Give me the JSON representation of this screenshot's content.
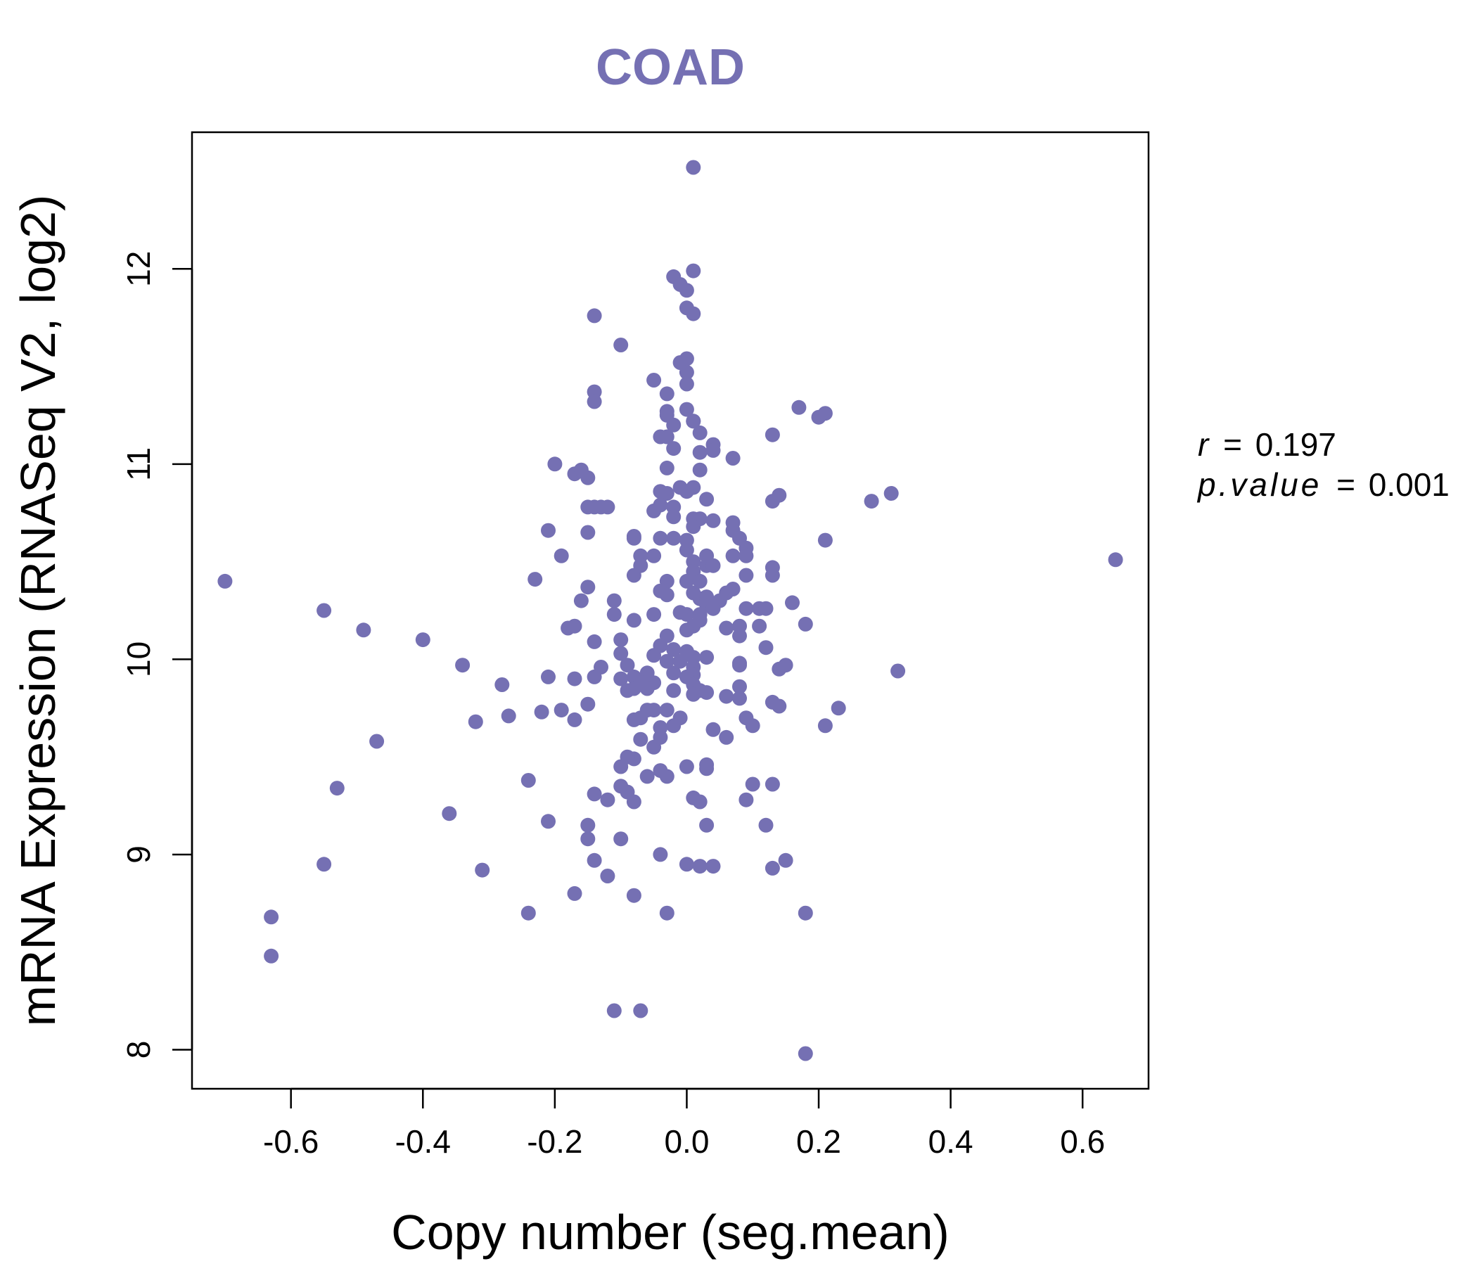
{
  "chart_data": {
    "type": "scatter",
    "title": "COAD",
    "xlabel": "Copy number (seg.mean)",
    "ylabel": "mRNA Expression (RNASeq V2, log2)",
    "xlim": [
      -0.75,
      0.7
    ],
    "ylim": [
      7.8,
      12.7
    ],
    "x_ticks": [
      -0.6,
      -0.4,
      -0.2,
      0.0,
      0.2,
      0.4,
      0.6
    ],
    "x_tick_labels": [
      "-0.6",
      "-0.4",
      "-0.2",
      "0.0",
      "0.2",
      "0.4",
      "0.6"
    ],
    "y_ticks": [
      8,
      9,
      10,
      11,
      12
    ],
    "y_tick_labels": [
      "8",
      "9",
      "10",
      "11",
      "12"
    ],
    "grid": false,
    "colors": {
      "points": "#7570b3",
      "title": "#7570b3",
      "axis": "#000000"
    },
    "annotations": {
      "r_label": "r",
      "r_value": "0.197",
      "p_label": "p.value",
      "p_value": "0.001",
      "equals": "="
    },
    "points": [
      [
        -0.7,
        10.4
      ],
      [
        -0.55,
        10.25
      ],
      [
        -0.49,
        10.15
      ],
      [
        -0.4,
        10.1
      ],
      [
        -0.34,
        9.97
      ],
      [
        -0.28,
        9.87
      ],
      [
        -0.32,
        9.68
      ],
      [
        -0.27,
        9.71
      ],
      [
        -0.47,
        9.58
      ],
      [
        -0.53,
        9.34
      ],
      [
        -0.36,
        9.21
      ],
      [
        -0.55,
        8.95
      ],
      [
        -0.31,
        8.92
      ],
      [
        -0.63,
        8.68
      ],
      [
        -0.63,
        8.48
      ],
      [
        -0.24,
        9.38
      ],
      [
        -0.24,
        8.7
      ],
      [
        -0.21,
        9.17
      ],
      [
        -0.23,
        10.41
      ],
      [
        -0.2,
        11.0
      ],
      [
        -0.21,
        10.66
      ],
      [
        -0.19,
        10.53
      ],
      [
        -0.22,
        9.73
      ],
      [
        -0.21,
        9.91
      ],
      [
        -0.19,
        9.74
      ],
      [
        -0.17,
        9.9
      ],
      [
        -0.17,
        9.69
      ],
      [
        -0.18,
        10.16
      ],
      [
        -0.17,
        10.17
      ],
      [
        -0.16,
        10.3
      ],
      [
        -0.15,
        10.37
      ],
      [
        -0.15,
        10.65
      ],
      [
        -0.15,
        10.93
      ],
      [
        -0.17,
        10.95
      ],
      [
        -0.16,
        10.97
      ],
      [
        -0.14,
        11.37
      ],
      [
        -0.14,
        11.32
      ],
      [
        -0.14,
        11.76
      ],
      [
        -0.15,
        10.78
      ],
      [
        -0.14,
        10.78
      ],
      [
        -0.13,
        10.78
      ],
      [
        -0.12,
        10.78
      ],
      [
        -0.14,
        10.09
      ],
      [
        -0.13,
        9.96
      ],
      [
        -0.14,
        9.91
      ],
      [
        -0.15,
        9.77
      ],
      [
        -0.14,
        9.31
      ],
      [
        -0.12,
        9.28
      ],
      [
        -0.15,
        9.15
      ],
      [
        -0.15,
        9.08
      ],
      [
        -0.14,
        8.97
      ],
      [
        -0.12,
        8.89
      ],
      [
        -0.17,
        8.8
      ],
      [
        -0.11,
        8.2
      ],
      [
        -0.07,
        8.2
      ],
      [
        -0.1,
        11.61
      ],
      [
        -0.11,
        10.3
      ],
      [
        -0.11,
        10.23
      ],
      [
        -0.1,
        10.1
      ],
      [
        -0.1,
        10.03
      ],
      [
        -0.09,
        9.97
      ],
      [
        -0.1,
        9.9
      ],
      [
        -0.08,
        9.91
      ],
      [
        -0.09,
        9.84
      ],
      [
        -0.08,
        9.85
      ],
      [
        -0.07,
        9.7
      ],
      [
        -0.08,
        9.69
      ],
      [
        -0.07,
        9.59
      ],
      [
        -0.08,
        9.49
      ],
      [
        -0.09,
        9.5
      ],
      [
        -0.1,
        9.45
      ],
      [
        -0.09,
        9.32
      ],
      [
        -0.1,
        9.35
      ],
      [
        -0.08,
        9.27
      ],
      [
        -0.1,
        9.08
      ],
      [
        -0.08,
        8.79
      ],
      [
        -0.08,
        10.63
      ],
      [
        -0.08,
        10.62
      ],
      [
        -0.07,
        10.53
      ],
      [
        -0.07,
        10.48
      ],
      [
        -0.08,
        10.43
      ],
      [
        -0.08,
        10.2
      ],
      [
        -0.06,
        9.93
      ],
      [
        -0.06,
        9.9
      ],
      [
        -0.05,
        9.88
      ],
      [
        -0.07,
        9.88
      ],
      [
        -0.06,
        9.85
      ],
      [
        -0.05,
        9.74
      ],
      [
        -0.06,
        9.74
      ],
      [
        -0.04,
        9.65
      ],
      [
        -0.05,
        9.55
      ],
      [
        -0.04,
        9.6
      ],
      [
        -0.06,
        9.4
      ],
      [
        -0.04,
        9.43
      ],
      [
        -0.03,
        9.4
      ],
      [
        -0.04,
        9.0
      ],
      [
        -0.03,
        8.7
      ],
      [
        -0.05,
        11.43
      ],
      [
        -0.04,
        11.14
      ],
      [
        -0.03,
        11.36
      ],
      [
        -0.03,
        11.27
      ],
      [
        -0.03,
        11.25
      ],
      [
        -0.02,
        11.2
      ],
      [
        -0.02,
        11.08
      ],
      [
        -0.03,
        11.14
      ],
      [
        -0.03,
        10.98
      ],
      [
        -0.04,
        10.86
      ],
      [
        -0.03,
        10.85
      ],
      [
        -0.02,
        10.78
      ],
      [
        -0.05,
        10.76
      ],
      [
        -0.04,
        10.79
      ],
      [
        -0.02,
        10.73
      ],
      [
        -0.02,
        10.62
      ],
      [
        -0.04,
        10.62
      ],
      [
        -0.05,
        10.53
      ],
      [
        -0.03,
        10.4
      ],
      [
        -0.04,
        10.35
      ],
      [
        -0.03,
        10.33
      ],
      [
        -0.05,
        10.23
      ],
      [
        -0.03,
        10.12
      ],
      [
        -0.04,
        10.07
      ],
      [
        -0.02,
        10.05
      ],
      [
        -0.05,
        10.02
      ],
      [
        -0.03,
        9.99
      ],
      [
        -0.02,
        9.93
      ],
      [
        -0.02,
        9.84
      ],
      [
        -0.03,
        9.74
      ],
      [
        -0.01,
        9.7
      ],
      [
        -0.02,
        9.66
      ],
      [
        -0.02,
        11.96
      ],
      [
        -0.01,
        11.92
      ],
      [
        0.01,
        11.99
      ],
      [
        0.0,
        11.89
      ],
      [
        0.0,
        11.8
      ],
      [
        0.01,
        11.77
      ],
      [
        -0.01,
        11.52
      ],
      [
        0.0,
        11.54
      ],
      [
        0.0,
        11.47
      ],
      [
        0.0,
        11.41
      ],
      [
        0.0,
        11.28
      ],
      [
        0.01,
        11.22
      ],
      [
        0.01,
        11.22
      ],
      [
        0.02,
        11.16
      ],
      [
        0.02,
        11.06
      ],
      [
        0.04,
        11.1
      ],
      [
        0.04,
        11.07
      ],
      [
        0.07,
        11.03
      ],
      [
        0.02,
        10.97
      ],
      [
        0.01,
        10.88
      ],
      [
        0.0,
        10.86
      ],
      [
        -0.01,
        10.88
      ],
      [
        0.03,
        10.82
      ],
      [
        0.01,
        10.72
      ],
      [
        0.02,
        10.72
      ],
      [
        0.04,
        10.71
      ],
      [
        0.07,
        10.7
      ],
      [
        0.07,
        10.66
      ],
      [
        0.08,
        10.62
      ],
      [
        0.09,
        10.57
      ],
      [
        0.09,
        10.53
      ],
      [
        0.07,
        10.53
      ],
      [
        0.03,
        10.53
      ],
      [
        0.03,
        10.48
      ],
      [
        0.04,
        10.48
      ],
      [
        0.01,
        10.5
      ],
      [
        0.0,
        10.56
      ],
      [
        0.0,
        10.61
      ],
      [
        0.01,
        10.68
      ],
      [
        0.01,
        10.45
      ],
      [
        0.0,
        10.4
      ],
      [
        0.02,
        10.4
      ],
      [
        0.01,
        10.34
      ],
      [
        0.02,
        10.31
      ],
      [
        0.03,
        10.28
      ],
      [
        0.03,
        10.32
      ],
      [
        0.05,
        10.3
      ],
      [
        0.04,
        10.26
      ],
      [
        0.06,
        10.34
      ],
      [
        0.07,
        10.36
      ],
      [
        0.09,
        10.43
      ],
      [
        0.02,
        10.23
      ],
      [
        0.0,
        10.23
      ],
      [
        -0.01,
        10.24
      ],
      [
        0.02,
        10.2
      ],
      [
        0.01,
        10.17
      ],
      [
        0.0,
        10.15
      ],
      [
        0.06,
        10.16
      ],
      [
        0.08,
        10.17
      ],
      [
        0.08,
        10.12
      ],
      [
        0.09,
        10.26
      ],
      [
        0.11,
        10.26
      ],
      [
        0.12,
        10.26
      ],
      [
        0.11,
        10.17
      ],
      [
        0.12,
        10.06
      ],
      [
        0.13,
        10.43
      ],
      [
        0.13,
        10.47
      ],
      [
        0.16,
        10.29
      ],
      [
        0.18,
        10.18
      ],
      [
        0.0,
        10.04
      ],
      [
        0.01,
        10.01
      ],
      [
        0.03,
        10.01
      ],
      [
        -0.01,
        9.99
      ],
      [
        0.01,
        9.96
      ],
      [
        0.01,
        9.92
      ],
      [
        0.0,
        9.91
      ],
      [
        0.01,
        9.87
      ],
      [
        0.02,
        9.84
      ],
      [
        0.03,
        9.83
      ],
      [
        0.01,
        9.82
      ],
      [
        0.06,
        9.81
      ],
      [
        0.08,
        9.86
      ],
      [
        0.08,
        9.8
      ],
      [
        0.08,
        9.98
      ],
      [
        0.08,
        9.97
      ],
      [
        0.14,
        9.95
      ],
      [
        0.15,
        9.97
      ],
      [
        0.13,
        9.78
      ],
      [
        0.14,
        9.76
      ],
      [
        0.09,
        9.7
      ],
      [
        0.1,
        9.66
      ],
      [
        0.04,
        9.64
      ],
      [
        0.06,
        9.6
      ],
      [
        0.03,
        9.46
      ],
      [
        0.03,
        9.44
      ],
      [
        0.0,
        9.45
      ],
      [
        0.01,
        9.29
      ],
      [
        0.02,
        9.27
      ],
      [
        0.03,
        9.15
      ],
      [
        0.1,
        9.36
      ],
      [
        0.13,
        9.36
      ],
      [
        0.12,
        9.15
      ],
      [
        0.09,
        9.28
      ],
      [
        0.0,
        8.95
      ],
      [
        0.02,
        8.94
      ],
      [
        0.04,
        8.94
      ],
      [
        0.13,
        8.93
      ],
      [
        0.15,
        8.97
      ],
      [
        0.18,
        8.7
      ],
      [
        0.18,
        7.98
      ],
      [
        0.13,
        11.15
      ],
      [
        0.17,
        11.29
      ],
      [
        0.2,
        11.24
      ],
      [
        0.21,
        11.26
      ],
      [
        0.13,
        10.81
      ],
      [
        0.14,
        10.84
      ],
      [
        0.21,
        10.61
      ],
      [
        0.28,
        10.81
      ],
      [
        0.31,
        10.85
      ],
      [
        0.32,
        9.94
      ],
      [
        0.23,
        9.75
      ],
      [
        0.21,
        9.66
      ],
      [
        0.65,
        10.51
      ],
      [
        0.01,
        12.52
      ]
    ]
  }
}
